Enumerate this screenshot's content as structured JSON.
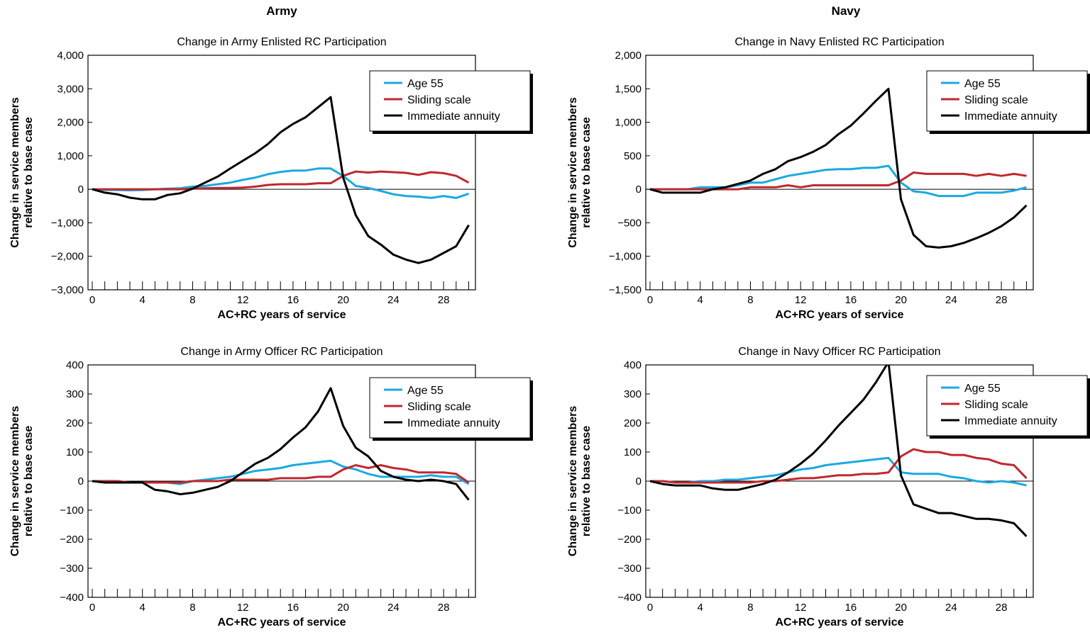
{
  "page": {
    "columns": [
      {
        "title": "Army"
      },
      {
        "title": "Navy"
      }
    ]
  },
  "colors": {
    "age55": "#1ba9e1",
    "sliding": "#c0282d",
    "immediate": "#000000"
  },
  "chart_data": [
    {
      "type": "line",
      "title": "Change in Army Enlisted RC Participation",
      "xlabel": "AC+RC years of service",
      "ylabel": "Change in service members relative to base case",
      "xlim": [
        0,
        30
      ],
      "ylim": [
        -3000,
        4000
      ],
      "yticks": [
        -3000,
        -2000,
        -1000,
        0,
        1000,
        2000,
        3000,
        4000
      ],
      "ytick_labels": [
        "−3,000",
        "−2,000",
        "−1,000",
        "0",
        "1,000",
        "2,000",
        "3,000",
        "4,000"
      ],
      "xticks": [
        0,
        4,
        8,
        12,
        16,
        20,
        24,
        28
      ],
      "xtick_labels": [
        "0",
        "4",
        "8",
        "12",
        "16",
        "20",
        "24",
        "28"
      ],
      "legend_position": "top-right",
      "x": [
        0,
        1,
        2,
        3,
        4,
        5,
        6,
        7,
        8,
        9,
        10,
        11,
        12,
        13,
        14,
        15,
        16,
        17,
        18,
        19,
        20,
        21,
        22,
        23,
        24,
        25,
        26,
        27,
        28,
        29,
        30
      ],
      "series": [
        {
          "name": "Age 55",
          "color_key": "age55",
          "values": [
            0,
            -20,
            -20,
            -30,
            -20,
            0,
            20,
            30,
            80,
            100,
            150,
            200,
            280,
            350,
            450,
            520,
            560,
            560,
            620,
            620,
            400,
            100,
            40,
            -50,
            -150,
            -200,
            -220,
            -260,
            -200,
            -260,
            -130
          ]
        },
        {
          "name": "Sliding scale",
          "color_key": "sliding",
          "values": [
            0,
            0,
            0,
            0,
            0,
            0,
            0,
            0,
            20,
            30,
            40,
            40,
            50,
            80,
            130,
            150,
            150,
            150,
            180,
            180,
            400,
            530,
            500,
            530,
            510,
            490,
            430,
            510,
            480,
            400,
            200
          ]
        },
        {
          "name": "Immediate annuity",
          "color_key": "immediate",
          "values": [
            0,
            -100,
            -150,
            -250,
            -300,
            -300,
            -170,
            -120,
            20,
            200,
            380,
            620,
            850,
            1080,
            1350,
            1700,
            1950,
            2150,
            2450,
            2750,
            350,
            -770,
            -1400,
            -1650,
            -1950,
            -2100,
            -2200,
            -2100,
            -1900,
            -1700,
            -1070
          ]
        }
      ]
    },
    {
      "type": "line",
      "title": "Change in Navy Enlisted RC Participation",
      "xlabel": "AC+RC years of service",
      "ylabel": "Change in service members relative to base case",
      "xlim": [
        0,
        30
      ],
      "ylim": [
        -1500,
        2000
      ],
      "yticks": [
        -1500,
        -1000,
        -500,
        0,
        500,
        1000,
        1500,
        2000
      ],
      "ytick_labels": [
        "−1,500",
        "−1,000",
        "−500",
        "0",
        "500",
        "1,000",
        "1,500",
        "2,000"
      ],
      "xticks": [
        0,
        4,
        8,
        12,
        16,
        20,
        24,
        28
      ],
      "xtick_labels": [
        "0",
        "4",
        "8",
        "12",
        "16",
        "20",
        "24",
        "28"
      ],
      "legend_position": "top-right",
      "x": [
        0,
        1,
        2,
        3,
        4,
        5,
        6,
        7,
        8,
        9,
        10,
        11,
        12,
        13,
        14,
        15,
        16,
        17,
        18,
        19,
        20,
        21,
        22,
        23,
        24,
        25,
        26,
        27,
        28,
        29,
        30
      ],
      "series": [
        {
          "name": "Age 55",
          "color_key": "age55",
          "values": [
            0,
            0,
            0,
            0,
            30,
            30,
            30,
            60,
            100,
            100,
            150,
            200,
            230,
            260,
            290,
            300,
            300,
            320,
            320,
            350,
            100,
            -30,
            -50,
            -100,
            -100,
            -100,
            -50,
            -50,
            -50,
            -20,
            30
          ]
        },
        {
          "name": "Sliding scale",
          "color_key": "sliding",
          "values": [
            0,
            0,
            0,
            0,
            0,
            0,
            0,
            0,
            30,
            30,
            30,
            60,
            30,
            60,
            60,
            60,
            60,
            60,
            60,
            60,
            130,
            250,
            230,
            230,
            230,
            230,
            200,
            230,
            200,
            230,
            200
          ]
        },
        {
          "name": "Immediate annuity",
          "color_key": "immediate",
          "values": [
            0,
            -50,
            -50,
            -50,
            -50,
            0,
            30,
            80,
            130,
            230,
            300,
            420,
            480,
            560,
            660,
            820,
            950,
            1130,
            1320,
            1500,
            -150,
            -680,
            -850,
            -870,
            -850,
            -800,
            -730,
            -650,
            -550,
            -420,
            -240
          ]
        }
      ]
    },
    {
      "type": "line",
      "title": "Change in Army Officer RC Participation",
      "xlabel": "AC+RC years of service",
      "ylabel": "Change in service members relative to base case",
      "xlim": [
        0,
        30
      ],
      "ylim": [
        -400,
        400
      ],
      "yticks": [
        -400,
        -300,
        -200,
        -100,
        0,
        100,
        200,
        300,
        400
      ],
      "ytick_labels": [
        "−400",
        "−300",
        "−200",
        "−100",
        "0",
        "100",
        "200",
        "300",
        "400"
      ],
      "xticks": [
        0,
        4,
        8,
        12,
        16,
        20,
        24,
        28
      ],
      "xtick_labels": [
        "0",
        "4",
        "8",
        "12",
        "16",
        "20",
        "24",
        "28"
      ],
      "legend_position": "top-right",
      "x": [
        0,
        1,
        2,
        3,
        4,
        5,
        6,
        7,
        8,
        9,
        10,
        11,
        12,
        13,
        14,
        15,
        16,
        17,
        18,
        19,
        20,
        21,
        22,
        23,
        24,
        25,
        26,
        27,
        28,
        29,
        30
      ],
      "series": [
        {
          "name": "Age 55",
          "color_key": "age55",
          "values": [
            0,
            0,
            0,
            -5,
            -5,
            -5,
            -5,
            -10,
            0,
            5,
            10,
            15,
            25,
            35,
            40,
            45,
            55,
            60,
            65,
            70,
            50,
            40,
            25,
            15,
            15,
            15,
            15,
            20,
            15,
            15,
            -10
          ]
        },
        {
          "name": "Sliding scale",
          "color_key": "sliding",
          "values": [
            0,
            0,
            0,
            -5,
            -5,
            -5,
            -5,
            -5,
            0,
            0,
            0,
            5,
            5,
            5,
            5,
            10,
            10,
            10,
            15,
            15,
            40,
            55,
            45,
            55,
            45,
            40,
            30,
            30,
            30,
            25,
            -5
          ]
        },
        {
          "name": "Immediate annuity",
          "color_key": "immediate",
          "values": [
            0,
            -5,
            -5,
            -5,
            -5,
            -30,
            -35,
            -45,
            -40,
            -30,
            -20,
            0,
            30,
            60,
            80,
            110,
            150,
            185,
            240,
            320,
            190,
            115,
            85,
            35,
            15,
            5,
            0,
            5,
            0,
            -10,
            -65
          ]
        }
      ]
    },
    {
      "type": "line",
      "title": "Change in Navy Officer RC Participation",
      "xlabel": "AC+RC years of service",
      "ylabel": "Change in service members relative to base case",
      "xlim": [
        0,
        30
      ],
      "ylim": [
        -400,
        400
      ],
      "yticks": [
        -400,
        -300,
        -200,
        -100,
        0,
        100,
        200,
        300,
        400
      ],
      "ytick_labels": [
        "−400",
        "−300",
        "−200",
        "−100",
        "0",
        "100",
        "200",
        "300",
        "400"
      ],
      "xticks": [
        0,
        4,
        8,
        12,
        16,
        20,
        24,
        28
      ],
      "xtick_labels": [
        "0",
        "4",
        "8",
        "12",
        "16",
        "20",
        "24",
        "28"
      ],
      "legend_position": "top-right",
      "x": [
        0,
        1,
        2,
        3,
        4,
        5,
        6,
        7,
        8,
        9,
        10,
        11,
        12,
        13,
        14,
        15,
        16,
        17,
        18,
        19,
        20,
        21,
        22,
        23,
        24,
        25,
        26,
        27,
        28,
        29,
        30
      ],
      "series": [
        {
          "name": "Age 55",
          "color_key": "age55",
          "values": [
            0,
            0,
            -5,
            -5,
            0,
            0,
            5,
            5,
            10,
            15,
            20,
            30,
            40,
            45,
            55,
            60,
            65,
            70,
            75,
            80,
            30,
            25,
            25,
            25,
            15,
            10,
            0,
            -5,
            0,
            -5,
            -15
          ]
        },
        {
          "name": "Sliding scale",
          "color_key": "sliding",
          "values": [
            0,
            0,
            -5,
            -5,
            -5,
            -5,
            -5,
            -5,
            -5,
            0,
            0,
            5,
            10,
            10,
            15,
            20,
            20,
            25,
            25,
            30,
            85,
            110,
            100,
            100,
            90,
            90,
            80,
            75,
            60,
            55,
            10
          ]
        },
        {
          "name": "Immediate annuity",
          "color_key": "immediate",
          "values": [
            0,
            -10,
            -15,
            -15,
            -15,
            -25,
            -30,
            -30,
            -20,
            -10,
            5,
            30,
            60,
            95,
            140,
            190,
            235,
            280,
            340,
            410,
            20,
            -80,
            -95,
            -110,
            -110,
            -120,
            -130,
            -130,
            -135,
            -145,
            -190
          ]
        }
      ]
    }
  ]
}
